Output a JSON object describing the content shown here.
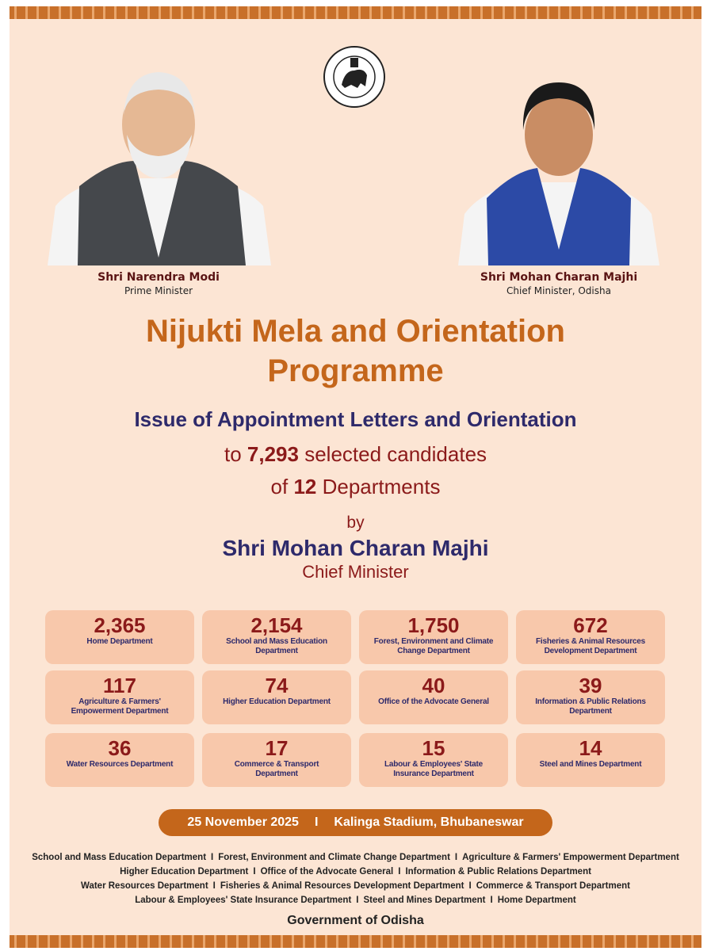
{
  "leaders": [
    {
      "name": "Shri Narendra Modi",
      "role": "Prime Minister"
    },
    {
      "name": "Shri Mohan Charan Majhi",
      "role": "Chief Minister, Odisha"
    }
  ],
  "title": {
    "line1": "Nijukti Mela and Orientation",
    "line2": "Programme"
  },
  "subtitle": "Issue of Appointment Letters and Orientation",
  "candidates_line": {
    "before": "to",
    "count": "7,293",
    "after": "selected candidates"
  },
  "departments_line": {
    "before": "of",
    "count": "12",
    "after": "Departments"
  },
  "by": "by",
  "presenter": {
    "name": "Shri Mohan Charan Majhi",
    "role": "Chief Minister"
  },
  "departments": [
    {
      "count": "2,365",
      "name": "Home Department"
    },
    {
      "count": "2,154",
      "name": "School and Mass Education Department"
    },
    {
      "count": "1,750",
      "name": "Forest, Environment and Climate Change Department"
    },
    {
      "count": "672",
      "name": "Fisheries & Animal Resources Development Department"
    },
    {
      "count": "117",
      "name": "Agriculture & Farmers' Empowerment Department"
    },
    {
      "count": "74",
      "name": "Higher Education Department"
    },
    {
      "count": "40",
      "name": "Office of the Advocate General"
    },
    {
      "count": "39",
      "name": "Information & Public Relations Department"
    },
    {
      "count": "36",
      "name": "Water Resources Department"
    },
    {
      "count": "17",
      "name": "Commerce & Transport Department"
    },
    {
      "count": "15",
      "name": "Labour & Employees' State Insurance Department"
    },
    {
      "count": "14",
      "name": "Steel and Mines Department"
    }
  ],
  "event": {
    "date": "25 November 2025",
    "separator": "I",
    "venue": "Kalinga Stadium, Bhubaneswar"
  },
  "footer": {
    "separator": "I",
    "lines": [
      [
        "School and Mass Education Department",
        "Forest, Environment and Climate Change Department",
        "Agriculture & Farmers' Empowerment Department"
      ],
      [
        "Higher Education Department",
        "Office of the Advocate General",
        "Information & Public Relations Department"
      ],
      [
        "Water Resources Department",
        "Fisheries & Animal Resources Development Department",
        "Commerce & Transport Department"
      ],
      [
        "Labour & Employees' State Insurance Department",
        "Steel and Mines Department",
        "Home Department"
      ]
    ],
    "organisation": "Government of Odisha"
  }
}
